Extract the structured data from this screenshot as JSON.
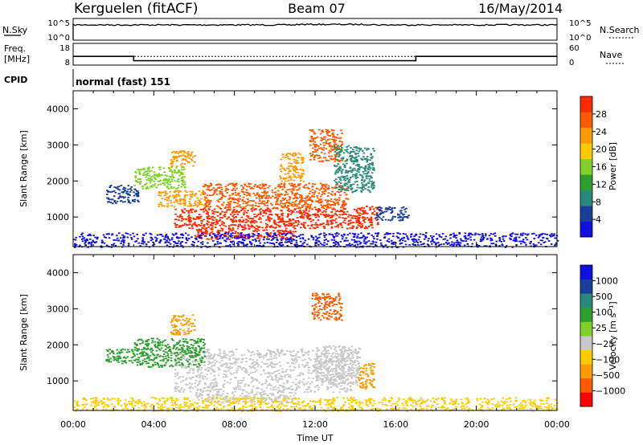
{
  "header": {
    "station": "Kerguelen (fitACF)",
    "beam": "Beam 07",
    "date": "16/May/2014"
  },
  "colors": {
    "red": "#ff2a00",
    "orange_red": "#ff5a00",
    "orange": "#ff9a00",
    "yellow": "#ffcc00",
    "light_green": "#7fd12a",
    "green": "#2ca02c",
    "teal": "#2a8a7a",
    "blue": "#1a3f9a",
    "deep_blue": "#1010e0",
    "gray": "#c8c8c8"
  },
  "nsky_panel": {
    "label": "N.Sky",
    "left_ticks": [
      "10^5",
      "10^0"
    ],
    "right_ticks": [
      "10^5",
      "10^0"
    ],
    "right_label": "N.Search"
  },
  "freq_panel": {
    "label_line1": "Freq.",
    "label_line2": "[MHz]",
    "left_ticks": [
      "18",
      "8"
    ],
    "right_ticks": [
      "60",
      "0"
    ],
    "right_label": "Nave",
    "freq_steps": [
      {
        "from_hour": 0,
        "to_hour": 3,
        "mhz": 12
      },
      {
        "from_hour": 3,
        "to_hour": 17,
        "mhz": 10
      },
      {
        "from_hour": 17,
        "to_hour": 24,
        "mhz": 12
      }
    ],
    "nave_level": 24
  },
  "cpid": {
    "label": "CPID",
    "mode": "normal (fast) 151"
  },
  "chart_data": [
    {
      "type": "heatmap",
      "name": "power",
      "ylabel": "Slant Range [km]",
      "y_ticks": [
        "1000",
        "2000",
        "3000",
        "4000"
      ],
      "xlim_hours": [
        0,
        24
      ],
      "ylim_km": [
        180,
        4500
      ],
      "colorbar": {
        "label": "Power [dB]",
        "ticks": [
          "4",
          "8",
          "12",
          "16",
          "20",
          "24",
          "28"
        ]
      },
      "echo_regions": [
        {
          "t0": 6.4,
          "t1": 13.6,
          "r0": 1250,
          "r1": 1950,
          "color": "orange_red"
        },
        {
          "t0": 5.0,
          "t1": 14.2,
          "r0": 700,
          "r1": 1250,
          "color": "red"
        },
        {
          "t0": 6.0,
          "t1": 11.0,
          "r0": 400,
          "r1": 700,
          "color": "red"
        },
        {
          "t0": 4.2,
          "t1": 6.5,
          "r0": 1300,
          "r1": 1750,
          "color": "orange"
        },
        {
          "t0": 1.6,
          "t1": 3.2,
          "r0": 1400,
          "r1": 1900,
          "color": "blue"
        },
        {
          "t0": 3.0,
          "t1": 5.5,
          "r0": 1800,
          "r1": 2400,
          "color": "light_green"
        },
        {
          "t0": 4.8,
          "t1": 6.0,
          "r0": 2400,
          "r1": 2850,
          "color": "orange"
        },
        {
          "t0": 10.2,
          "t1": 11.4,
          "r0": 2000,
          "r1": 2800,
          "color": "orange"
        },
        {
          "t0": 11.7,
          "t1": 13.3,
          "r0": 2550,
          "r1": 3450,
          "color": "orange_red"
        },
        {
          "t0": 12.9,
          "t1": 14.9,
          "r0": 1700,
          "r1": 3000,
          "color": "teal"
        },
        {
          "t0": 14.0,
          "t1": 15.1,
          "r0": 700,
          "r1": 1350,
          "color": "red"
        },
        {
          "t0": 15.0,
          "t1": 16.6,
          "r0": 900,
          "r1": 1300,
          "color": "blue"
        },
        {
          "t0": 0.0,
          "t1": 24.0,
          "r0": 180,
          "r1": 580,
          "color": "deep_blue"
        }
      ]
    },
    {
      "type": "heatmap",
      "name": "velocity",
      "ylabel": "Slant Range [km]",
      "y_ticks": [
        "1000",
        "2000",
        "3000",
        "4000"
      ],
      "x_ticks": [
        "00:00",
        "04:00",
        "08:00",
        "12:00",
        "16:00",
        "20:00",
        "00:00"
      ],
      "xlabel": "Time UT",
      "xlim_hours": [
        0,
        24
      ],
      "ylim_km": [
        180,
        4500
      ],
      "colorbar": {
        "label": "Velocity [m s⁻¹]",
        "ticks": [
          "1000",
          "500",
          "100",
          "25",
          "−25",
          "−100",
          "−500",
          "−1000"
        ]
      },
      "echo_regions": [
        {
          "t0": 5.0,
          "t1": 13.8,
          "r0": 700,
          "r1": 1900,
          "color": "gray"
        },
        {
          "t0": 6.0,
          "t1": 11.0,
          "r0": 400,
          "r1": 700,
          "color": "gray"
        },
        {
          "t0": 12.0,
          "t1": 14.2,
          "r0": 900,
          "r1": 2000,
          "color": "gray"
        },
        {
          "t0": 3.0,
          "t1": 6.5,
          "r0": 1400,
          "r1": 2200,
          "color": "green"
        },
        {
          "t0": 1.6,
          "t1": 3.0,
          "r0": 1500,
          "r1": 1900,
          "color": "green"
        },
        {
          "t0": 4.8,
          "t1": 6.0,
          "r0": 2300,
          "r1": 2850,
          "color": "orange"
        },
        {
          "t0": 11.8,
          "t1": 13.3,
          "r0": 2700,
          "r1": 3450,
          "color": "orange_red"
        },
        {
          "t0": 14.1,
          "t1": 14.9,
          "r0": 800,
          "r1": 1500,
          "color": "orange"
        },
        {
          "t0": 0.0,
          "t1": 24.0,
          "r0": 180,
          "r1": 560,
          "color": "yellow"
        }
      ]
    }
  ]
}
